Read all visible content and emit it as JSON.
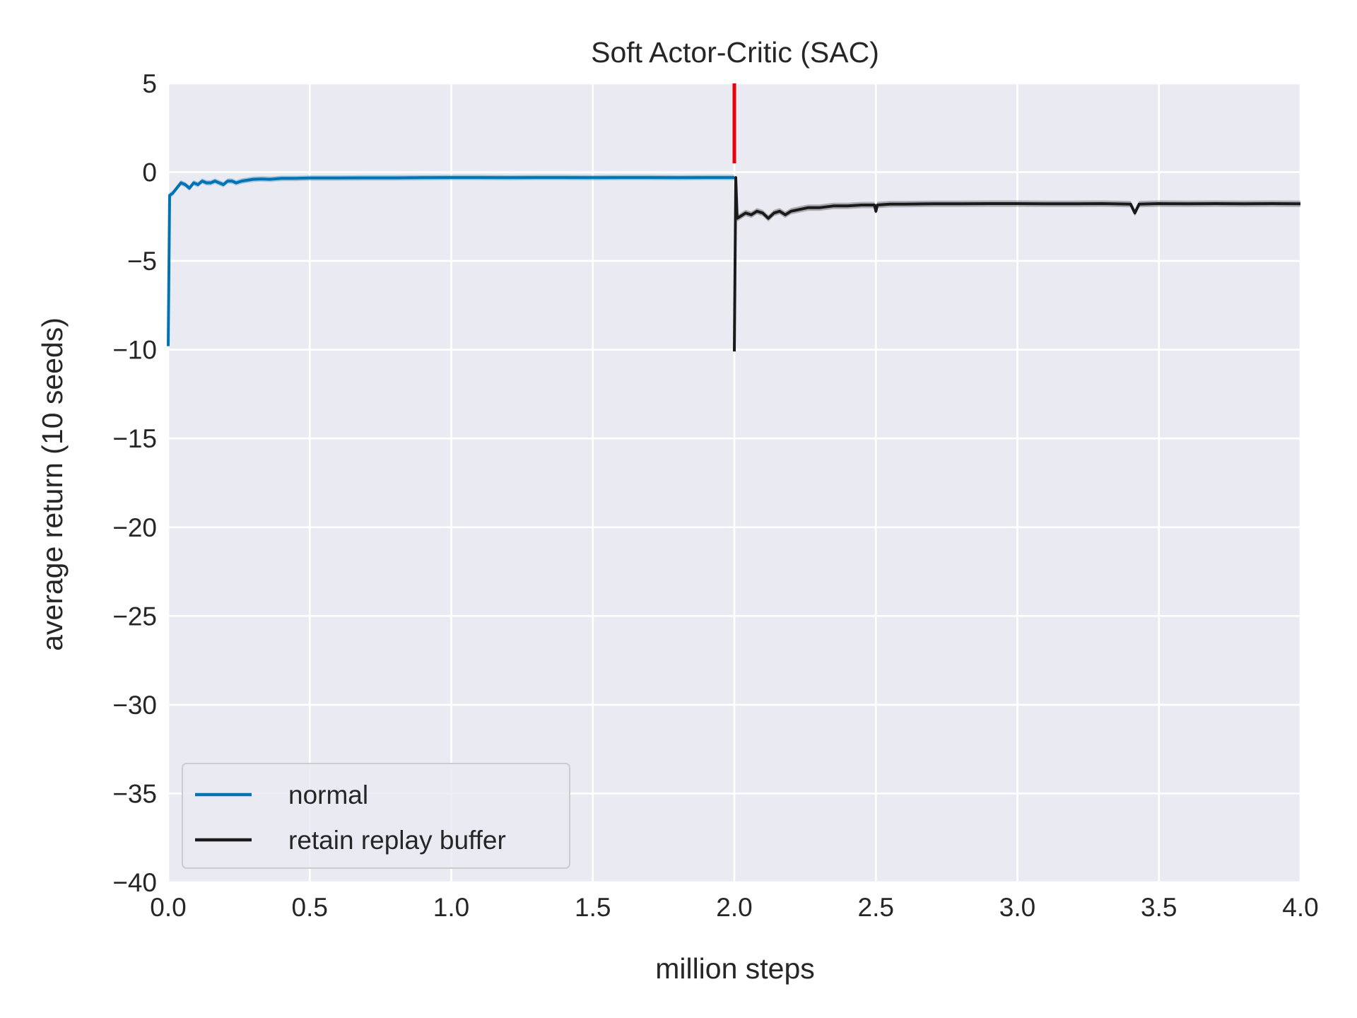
{
  "chart_data": {
    "type": "line",
    "title": "Soft Actor-Critic (SAC)",
    "xlabel": "million steps",
    "ylabel": "average return (10 seeds)",
    "xlim": [
      0,
      4
    ],
    "ylim": [
      -40,
      5
    ],
    "xticks": [
      0,
      0.5,
      1,
      1.5,
      2,
      2.5,
      3,
      3.5,
      4
    ],
    "xtick_labels": [
      "0.0",
      "0.5",
      "1.0",
      "1.5",
      "2.0",
      "2.5",
      "3.0",
      "3.5",
      "4.0"
    ],
    "yticks": [
      5,
      0,
      -5,
      -10,
      -15,
      -20,
      -25,
      -30,
      -35,
      -40
    ],
    "ytick_labels": [
      "5",
      "0",
      "−5",
      "−10",
      "−15",
      "−20",
      "−25",
      "−30",
      "−35",
      "−40"
    ],
    "grid": true,
    "legend_position": "lower-left",
    "background_color": "#eaeaf2",
    "vline": {
      "x": 2.0,
      "y_range": [
        0.5,
        5
      ],
      "color": "#e8000b"
    },
    "series": [
      {
        "name": "normal",
        "color": "#0173b2",
        "x": [
          0.0,
          0.005,
          0.015,
          0.03,
          0.045,
          0.06,
          0.075,
          0.09,
          0.105,
          0.12,
          0.135,
          0.15,
          0.165,
          0.18,
          0.195,
          0.21,
          0.225,
          0.24,
          0.26,
          0.28,
          0.3,
          0.33,
          0.36,
          0.4,
          0.45,
          0.5,
          0.6,
          0.7,
          0.8,
          0.9,
          1.0,
          1.1,
          1.2,
          1.3,
          1.4,
          1.5,
          1.6,
          1.7,
          1.8,
          1.9,
          2.0
        ],
        "y": [
          -9.8,
          -1.3,
          -1.2,
          -0.9,
          -0.6,
          -0.7,
          -0.9,
          -0.6,
          -0.7,
          -0.5,
          -0.6,
          -0.6,
          -0.5,
          -0.6,
          -0.7,
          -0.5,
          -0.5,
          -0.6,
          -0.5,
          -0.45,
          -0.4,
          -0.38,
          -0.4,
          -0.35,
          -0.35,
          -0.33,
          -0.33,
          -0.32,
          -0.32,
          -0.31,
          -0.3,
          -0.3,
          -0.31,
          -0.3,
          -0.3,
          -0.31,
          -0.3,
          -0.3,
          -0.31,
          -0.3,
          -0.3
        ],
        "band": 0.15
      },
      {
        "name": "retain replay buffer",
        "color": "#1a1a1a",
        "x": [
          2.0,
          2.005,
          2.01,
          2.02,
          2.04,
          2.06,
          2.08,
          2.1,
          2.12,
          2.14,
          2.16,
          2.18,
          2.2,
          2.23,
          2.26,
          2.3,
          2.35,
          2.4,
          2.45,
          2.495,
          2.5,
          2.505,
          2.55,
          2.6,
          2.7,
          2.8,
          2.9,
          3.0,
          3.1,
          3.2,
          3.3,
          3.4,
          3.415,
          3.43,
          3.5,
          3.6,
          3.7,
          3.8,
          3.9,
          4.0
        ],
        "y": [
          -10.1,
          -0.3,
          -2.6,
          -2.5,
          -2.3,
          -2.4,
          -2.2,
          -2.3,
          -2.6,
          -2.3,
          -2.2,
          -2.4,
          -2.2,
          -2.1,
          -2.0,
          -2.0,
          -1.9,
          -1.9,
          -1.85,
          -1.85,
          -2.2,
          -1.85,
          -1.8,
          -1.8,
          -1.78,
          -1.78,
          -1.77,
          -1.77,
          -1.78,
          -1.78,
          -1.77,
          -1.8,
          -2.3,
          -1.8,
          -1.77,
          -1.78,
          -1.77,
          -1.78,
          -1.77,
          -1.78
        ],
        "band": 0.18
      }
    ]
  }
}
